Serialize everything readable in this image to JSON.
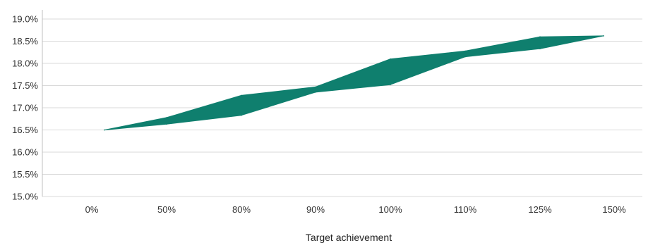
{
  "chart_data": {
    "type": "area",
    "categories": [
      "0%",
      "50%",
      "80%",
      "90%",
      "100%",
      "110%",
      "125%",
      "150%"
    ],
    "series": [
      {
        "values": [
          16.5,
          16.78,
          17.28,
          17.47,
          18.1,
          18.28,
          18.6,
          18.62
        ]
      },
      {
        "values": [
          16.5,
          16.63,
          16.83,
          17.35,
          17.52,
          18.15,
          18.33,
          18.62
        ]
      }
    ],
    "xlabel": "Target achievement",
    "ylabel": "",
    "ylim": [
      15.0,
      19.0
    ],
    "yticks": [
      "15.0%",
      "15.5%",
      "16.0%",
      "16.5%",
      "17.0%",
      "17.5%",
      "18.0%",
      "18.5%",
      "19.0%"
    ],
    "grid": true,
    "colors": {
      "band": "#0f7f6e",
      "grid": "#d9d9d9"
    }
  }
}
